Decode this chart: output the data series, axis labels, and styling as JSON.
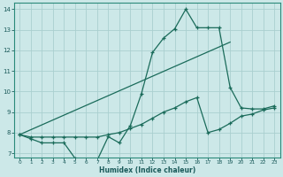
{
  "xlabel": "Humidex (Indice chaleur)",
  "ylabel": "",
  "background_color": "#cce8e8",
  "grid_color": "#aacfcf",
  "line_color": "#1a6b5a",
  "xlim": [
    -0.5,
    23.5
  ],
  "ylim": [
    6.8,
    14.3
  ],
  "xticks": [
    0,
    1,
    2,
    3,
    4,
    5,
    6,
    7,
    8,
    9,
    10,
    11,
    12,
    13,
    14,
    15,
    16,
    17,
    18,
    19,
    20,
    21,
    22,
    23
  ],
  "yticks": [
    7,
    8,
    9,
    10,
    11,
    12,
    13,
    14
  ],
  "line1_x": [
    0,
    1,
    2,
    3,
    4,
    5,
    6,
    7,
    8,
    9,
    10,
    11,
    12,
    13,
    14,
    15,
    16,
    17,
    18,
    19,
    20,
    21,
    22,
    23
  ],
  "line1_y": [
    7.9,
    7.7,
    7.5,
    7.5,
    7.5,
    6.75,
    6.65,
    6.65,
    7.8,
    7.5,
    8.35,
    9.9,
    11.9,
    12.6,
    13.05,
    14.0,
    13.1,
    13.1,
    13.1,
    10.2,
    9.2,
    9.15,
    9.15,
    9.3
  ],
  "line2_x": [
    0,
    1,
    2,
    3,
    4,
    5,
    6,
    7,
    8,
    9,
    10,
    11,
    12,
    13,
    14,
    15,
    16,
    17,
    18,
    19,
    20,
    21,
    22,
    23
  ],
  "line2_y": [
    7.9,
    7.78,
    7.78,
    7.78,
    7.78,
    7.78,
    7.78,
    7.78,
    7.9,
    8.0,
    8.2,
    8.4,
    8.7,
    9.0,
    9.2,
    9.5,
    9.7,
    8.0,
    8.15,
    8.45,
    8.8,
    8.9,
    9.1,
    9.2
  ],
  "line3_x": [
    0,
    19
  ],
  "line3_y": [
    7.9,
    12.4
  ]
}
